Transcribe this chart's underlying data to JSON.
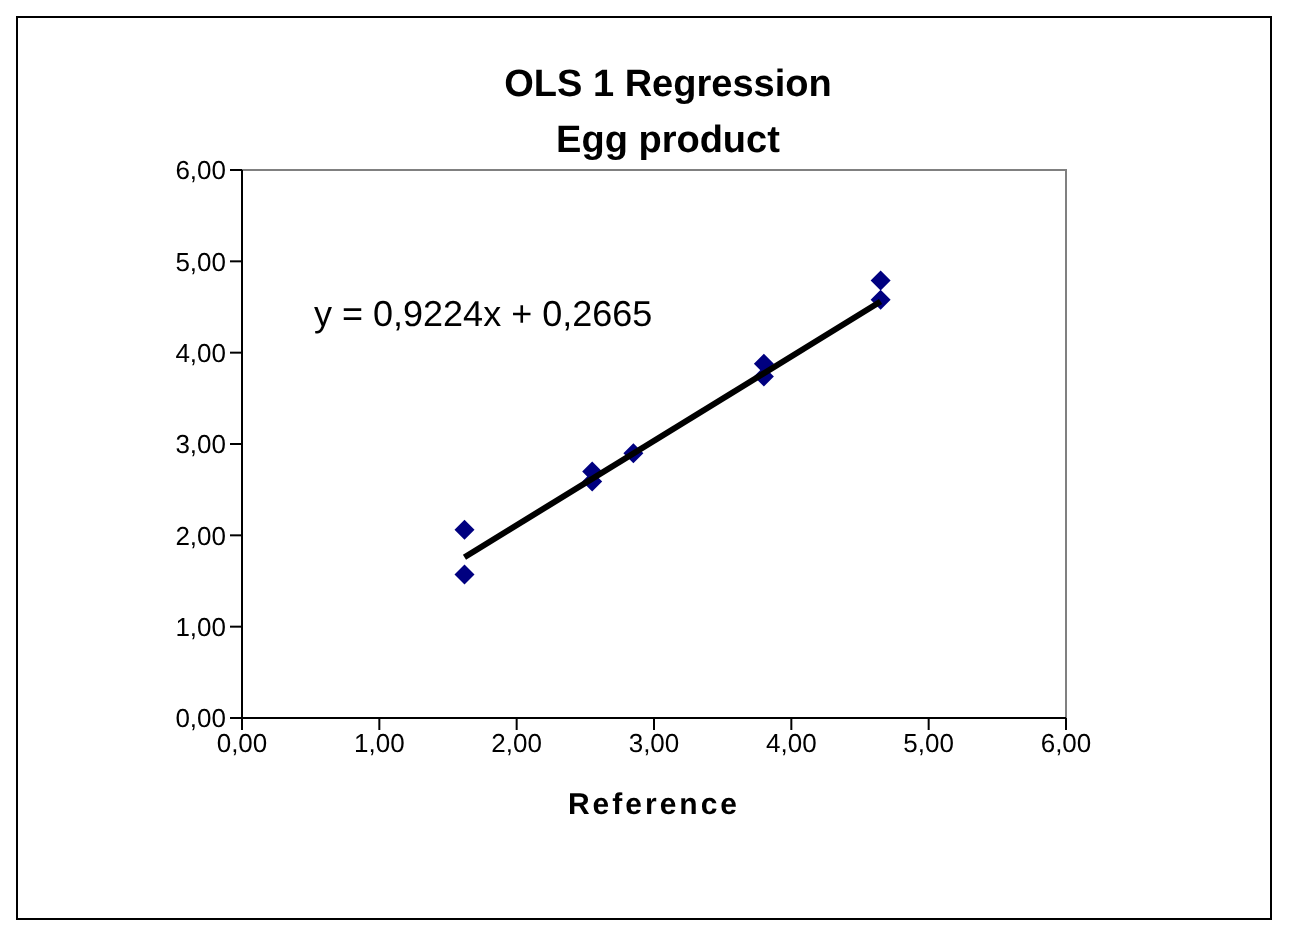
{
  "chart_data": {
    "type": "scatter",
    "title": "OLS 1 Regression\nEgg product",
    "xlabel": "Reference",
    "annotations": [
      "y = 0,9224x + 0,2665"
    ],
    "series": [
      {
        "color": "#000080",
        "marker": "diamond",
        "x": [
          1.62,
          1.62,
          2.55,
          2.55,
          2.85,
          3.8,
          3.8,
          4.65,
          4.65
        ],
        "values": [
          2.06,
          1.57,
          2.7,
          2.59,
          2.9,
          3.88,
          3.74,
          4.79,
          4.58
        ]
      },
      {
        "type": "line",
        "color": "#000000",
        "marker": "none",
        "x": [
          1.62,
          4.65
        ],
        "values": [
          1.76,
          4.56
        ]
      }
    ],
    "xlim": [
      0,
      6
    ],
    "ylim": [
      0,
      6
    ],
    "xticks": [
      {
        "value": 0,
        "label": "0,00"
      },
      {
        "value": 1,
        "label": "1,00"
      },
      {
        "value": 2,
        "label": "2,00"
      },
      {
        "value": 3,
        "label": "3,00"
      },
      {
        "value": 4,
        "label": "4,00"
      },
      {
        "value": 5,
        "label": "5,00"
      },
      {
        "value": 6,
        "label": "6,00"
      }
    ],
    "yticks": [
      {
        "value": 0,
        "label": "0,00"
      },
      {
        "value": 1,
        "label": "1,00"
      },
      {
        "value": 2,
        "label": "2,00"
      },
      {
        "value": 3,
        "label": "3,00"
      },
      {
        "value": 4,
        "label": "4,00"
      },
      {
        "value": 5,
        "label": "5,00"
      },
      {
        "value": 6,
        "label": "6,00"
      }
    ]
  }
}
